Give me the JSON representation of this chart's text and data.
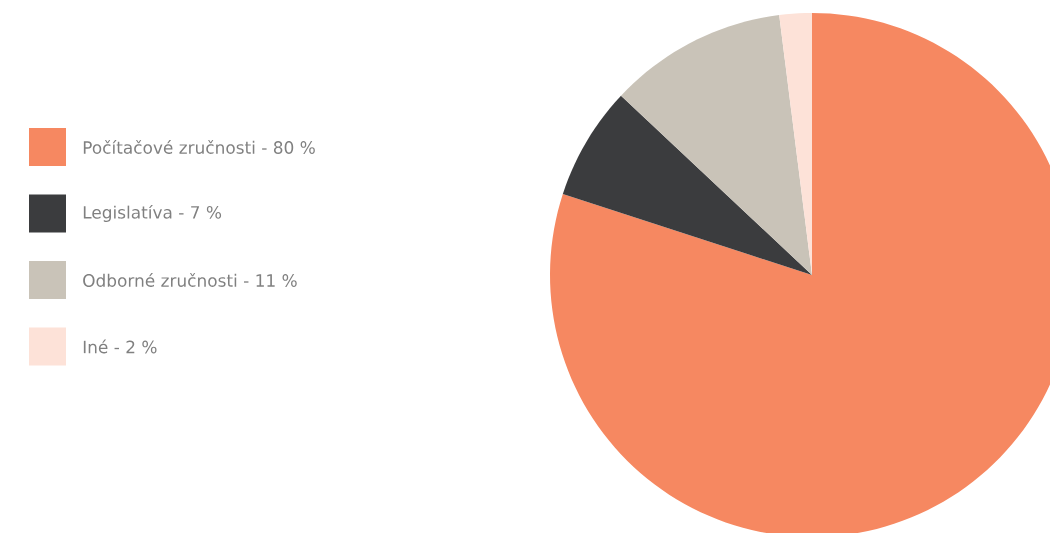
{
  "chart_data": {
    "type": "pie",
    "categories": [
      "Počítačové zručnosti - 80 %",
      "Legislatíva - 7 %",
      "Odborné zručnosti - 11 %",
      "Iné - 2 %"
    ],
    "values": [
      80,
      7,
      11,
      2
    ],
    "colors": [
      "#f68861",
      "#3b3c3e",
      "#c9c3b8",
      "#fde2d8"
    ],
    "legend": "left"
  }
}
